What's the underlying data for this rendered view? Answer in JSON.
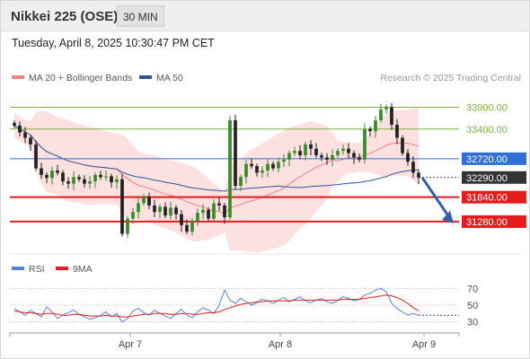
{
  "header": {
    "title": "Nikkei 225 (OSE)",
    "interval": "30 MIN"
  },
  "datetime": "Tuesday, April 8, 2025 10:30:47 PM CET",
  "legend": {
    "ma20_label": "MA 20 + Bollinger Bands",
    "ma50_label": "MA 50",
    "copyright": "Research © 2025 Trading Central",
    "ma20_color": "#f08080",
    "ma50_color": "#2f5597"
  },
  "rsi_legend": {
    "rsi_label": "RSI",
    "ma9_label": "9MA",
    "rsi_color": "#5b7fdb",
    "ma9_color": "#e31c1c"
  },
  "chart_data": [
    {
      "type": "candlestick",
      "title": "Nikkei 225 (OSE)",
      "x_labels": [
        "Apr 7",
        "Apr 8",
        "Apr 9"
      ],
      "ylim": [
        30600,
        34300
      ],
      "close_series": [
        33480,
        33320,
        33200,
        33050,
        32500,
        32350,
        32280,
        32450,
        32400,
        32200,
        32150,
        32300,
        32250,
        32150,
        32200,
        32350,
        32300,
        32320,
        32180,
        32250,
        31000,
        31350,
        31500,
        31700,
        31850,
        31650,
        31500,
        31620,
        31420,
        31600,
        31450,
        31200,
        31050,
        31300,
        31480,
        31550,
        31350,
        31700,
        31650,
        31380,
        33600,
        32100,
        32300,
        32600,
        32550,
        32400,
        32450,
        32600,
        32500,
        32650,
        32700,
        32850,
        32900,
        32800,
        33050,
        32950,
        32800,
        32750,
        32700,
        32800,
        32900,
        32950,
        32850,
        32750,
        32700,
        33400,
        33350,
        33600,
        33850,
        33900,
        33500,
        33200,
        32850,
        32650,
        32400,
        32290
      ],
      "levels": [
        {
          "value": 33900,
          "label": "33900.00",
          "color": "#7cb342"
        },
        {
          "value": 33400,
          "label": "33400.00",
          "color": "#7cb342"
        },
        {
          "value": 32720,
          "label": "32720.00",
          "color": "#2f6fd6"
        },
        {
          "value": 32290,
          "label": "32290.00",
          "color": "#333333"
        },
        {
          "value": 31840,
          "label": "31840.00",
          "color": "#e31c1c"
        },
        {
          "value": 31280,
          "label": "31280.00",
          "color": "#e31c1c"
        }
      ],
      "forecast": {
        "from": 32290,
        "to": 31280
      }
    },
    {
      "type": "line",
      "title": "RSI",
      "ylim": [
        20,
        80
      ],
      "y_ticks": [
        70,
        50,
        30
      ],
      "series": [
        {
          "name": "RSI",
          "values": [
            46,
            42,
            38,
            44,
            40,
            36,
            48,
            42,
            34,
            38,
            41,
            44,
            39,
            36,
            33,
            35,
            38,
            42,
            36,
            40,
            30,
            34,
            43,
            46,
            41,
            38,
            44,
            40,
            37,
            34,
            40,
            45,
            38,
            35,
            42,
            47,
            44,
            40,
            50,
            68,
            56,
            52,
            58,
            54,
            50,
            53,
            57,
            55,
            52,
            56,
            59,
            54,
            57,
            60,
            55,
            53,
            56,
            58,
            54,
            52,
            56,
            60,
            58,
            55,
            57,
            62,
            64,
            68,
            70,
            66,
            52,
            46,
            42,
            38,
            40,
            38
          ]
        },
        {
          "name": "9MA",
          "values": [
            43,
            42,
            41,
            41,
            40,
            39,
            40,
            40,
            39,
            38,
            38,
            39,
            39,
            38,
            37,
            37,
            37,
            38,
            37,
            37,
            36,
            36,
            37,
            38,
            39,
            39,
            40,
            40,
            40,
            39,
            39,
            40,
            40,
            39,
            39,
            40,
            41,
            41,
            42,
            45,
            47,
            49,
            51,
            52,
            53,
            54,
            54,
            55,
            55,
            55,
            55,
            55,
            56,
            56,
            56,
            56,
            56,
            56,
            56,
            56,
            56,
            57,
            57,
            57,
            57,
            58,
            59,
            60,
            61,
            62,
            61,
            59,
            56,
            52,
            47,
            43
          ]
        }
      ]
    }
  ]
}
